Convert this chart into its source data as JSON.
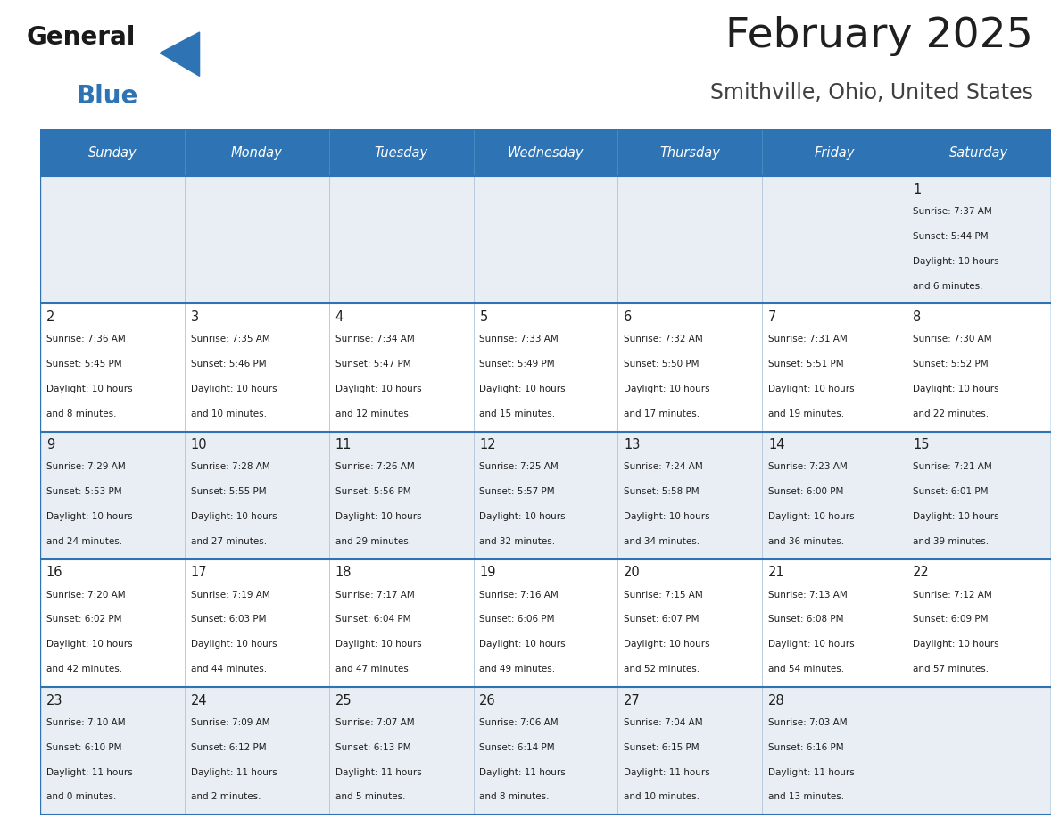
{
  "title": "February 2025",
  "subtitle": "Smithville, Ohio, United States",
  "header_bg_color": "#2E74B5",
  "header_text_color": "#FFFFFF",
  "cell_bg_color": "#FFFFFF",
  "alt_row_bg_color": "#E9EEF4",
  "border_color": "#2E74B5",
  "sep_color": "#B0C4D8",
  "day_headers": [
    "Sunday",
    "Monday",
    "Tuesday",
    "Wednesday",
    "Thursday",
    "Friday",
    "Saturday"
  ],
  "title_color": "#1F1F1F",
  "subtitle_color": "#404040",
  "day_num_color": "#1F1F1F",
  "info_color": "#1F1F1F",
  "calendar_data": [
    [
      {
        "day": "",
        "info": ""
      },
      {
        "day": "",
        "info": ""
      },
      {
        "day": "",
        "info": ""
      },
      {
        "day": "",
        "info": ""
      },
      {
        "day": "",
        "info": ""
      },
      {
        "day": "",
        "info": ""
      },
      {
        "day": "1",
        "info": "Sunrise: 7:37 AM\nSunset: 5:44 PM\nDaylight: 10 hours\nand 6 minutes."
      }
    ],
    [
      {
        "day": "2",
        "info": "Sunrise: 7:36 AM\nSunset: 5:45 PM\nDaylight: 10 hours\nand 8 minutes."
      },
      {
        "day": "3",
        "info": "Sunrise: 7:35 AM\nSunset: 5:46 PM\nDaylight: 10 hours\nand 10 minutes."
      },
      {
        "day": "4",
        "info": "Sunrise: 7:34 AM\nSunset: 5:47 PM\nDaylight: 10 hours\nand 12 minutes."
      },
      {
        "day": "5",
        "info": "Sunrise: 7:33 AM\nSunset: 5:49 PM\nDaylight: 10 hours\nand 15 minutes."
      },
      {
        "day": "6",
        "info": "Sunrise: 7:32 AM\nSunset: 5:50 PM\nDaylight: 10 hours\nand 17 minutes."
      },
      {
        "day": "7",
        "info": "Sunrise: 7:31 AM\nSunset: 5:51 PM\nDaylight: 10 hours\nand 19 minutes."
      },
      {
        "day": "8",
        "info": "Sunrise: 7:30 AM\nSunset: 5:52 PM\nDaylight: 10 hours\nand 22 minutes."
      }
    ],
    [
      {
        "day": "9",
        "info": "Sunrise: 7:29 AM\nSunset: 5:53 PM\nDaylight: 10 hours\nand 24 minutes."
      },
      {
        "day": "10",
        "info": "Sunrise: 7:28 AM\nSunset: 5:55 PM\nDaylight: 10 hours\nand 27 minutes."
      },
      {
        "day": "11",
        "info": "Sunrise: 7:26 AM\nSunset: 5:56 PM\nDaylight: 10 hours\nand 29 minutes."
      },
      {
        "day": "12",
        "info": "Sunrise: 7:25 AM\nSunset: 5:57 PM\nDaylight: 10 hours\nand 32 minutes."
      },
      {
        "day": "13",
        "info": "Sunrise: 7:24 AM\nSunset: 5:58 PM\nDaylight: 10 hours\nand 34 minutes."
      },
      {
        "day": "14",
        "info": "Sunrise: 7:23 AM\nSunset: 6:00 PM\nDaylight: 10 hours\nand 36 minutes."
      },
      {
        "day": "15",
        "info": "Sunrise: 7:21 AM\nSunset: 6:01 PM\nDaylight: 10 hours\nand 39 minutes."
      }
    ],
    [
      {
        "day": "16",
        "info": "Sunrise: 7:20 AM\nSunset: 6:02 PM\nDaylight: 10 hours\nand 42 minutes."
      },
      {
        "day": "17",
        "info": "Sunrise: 7:19 AM\nSunset: 6:03 PM\nDaylight: 10 hours\nand 44 minutes."
      },
      {
        "day": "18",
        "info": "Sunrise: 7:17 AM\nSunset: 6:04 PM\nDaylight: 10 hours\nand 47 minutes."
      },
      {
        "day": "19",
        "info": "Sunrise: 7:16 AM\nSunset: 6:06 PM\nDaylight: 10 hours\nand 49 minutes."
      },
      {
        "day": "20",
        "info": "Sunrise: 7:15 AM\nSunset: 6:07 PM\nDaylight: 10 hours\nand 52 minutes."
      },
      {
        "day": "21",
        "info": "Sunrise: 7:13 AM\nSunset: 6:08 PM\nDaylight: 10 hours\nand 54 minutes."
      },
      {
        "day": "22",
        "info": "Sunrise: 7:12 AM\nSunset: 6:09 PM\nDaylight: 10 hours\nand 57 minutes."
      }
    ],
    [
      {
        "day": "23",
        "info": "Sunrise: 7:10 AM\nSunset: 6:10 PM\nDaylight: 11 hours\nand 0 minutes."
      },
      {
        "day": "24",
        "info": "Sunrise: 7:09 AM\nSunset: 6:12 PM\nDaylight: 11 hours\nand 2 minutes."
      },
      {
        "day": "25",
        "info": "Sunrise: 7:07 AM\nSunset: 6:13 PM\nDaylight: 11 hours\nand 5 minutes."
      },
      {
        "day": "26",
        "info": "Sunrise: 7:06 AM\nSunset: 6:14 PM\nDaylight: 11 hours\nand 8 minutes."
      },
      {
        "day": "27",
        "info": "Sunrise: 7:04 AM\nSunset: 6:15 PM\nDaylight: 11 hours\nand 10 minutes."
      },
      {
        "day": "28",
        "info": "Sunrise: 7:03 AM\nSunset: 6:16 PM\nDaylight: 11 hours\nand 13 minutes."
      },
      {
        "day": "",
        "info": ""
      }
    ]
  ],
  "logo_text_general": "General",
  "logo_text_blue": "Blue",
  "logo_color_general": "#1a1a1a",
  "logo_color_blue": "#2E74B5",
  "logo_triangle_color": "#2E74B5"
}
